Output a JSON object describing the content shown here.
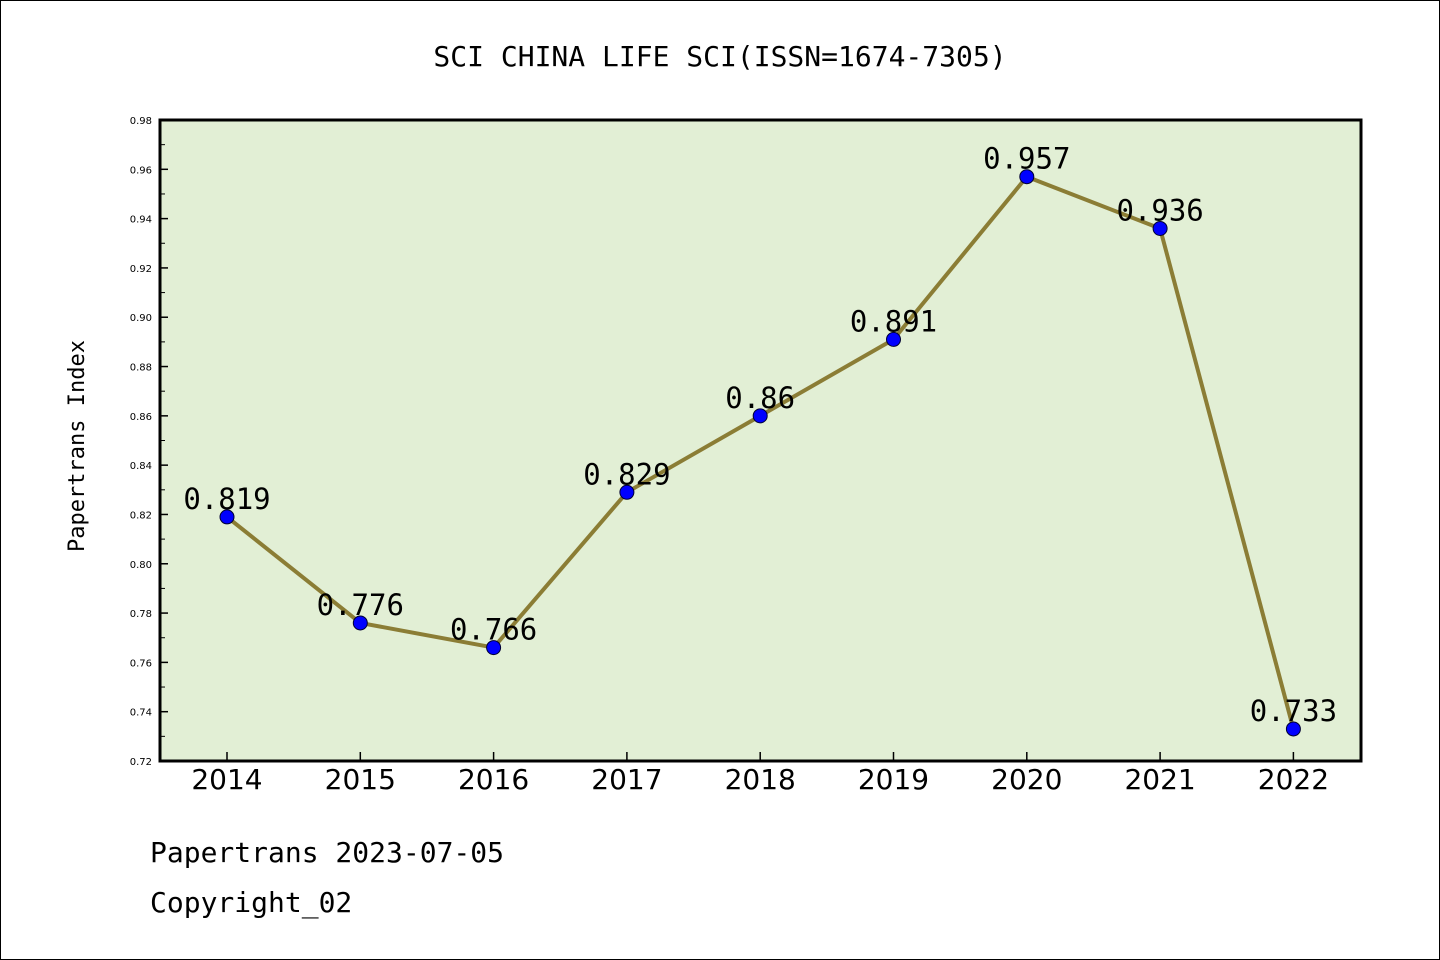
{
  "chart_data": {
    "type": "line",
    "title": "SCI CHINA LIFE SCI(ISSN=1674-7305)",
    "xlabel": "",
    "ylabel": "Papertrans Index",
    "categories": [
      "2014",
      "2015",
      "2016",
      "2017",
      "2018",
      "2019",
      "2020",
      "2021",
      "2022"
    ],
    "values": [
      0.819,
      0.776,
      0.766,
      0.829,
      0.86,
      0.891,
      0.957,
      0.936,
      0.733
    ],
    "data_labels": [
      "0.819",
      "0.776",
      "0.766",
      "0.829",
      "0.86",
      "0.891",
      "0.957",
      "0.936",
      "0.733"
    ],
    "ylim": [
      0.72,
      0.98
    ],
    "yticks": [
      "0.72",
      "0.74",
      "0.76",
      "0.78",
      "0.80",
      "0.82",
      "0.84",
      "0.86",
      "0.88",
      "0.90",
      "0.92",
      "0.94",
      "0.96",
      "0.98"
    ],
    "grid": false,
    "colors": {
      "plot_background": "#e2efd5",
      "line": "#8b7d35",
      "marker": "#0000ff"
    }
  },
  "footer": {
    "line1": "Papertrans 2023-07-05",
    "line2": "Copyright_02"
  }
}
